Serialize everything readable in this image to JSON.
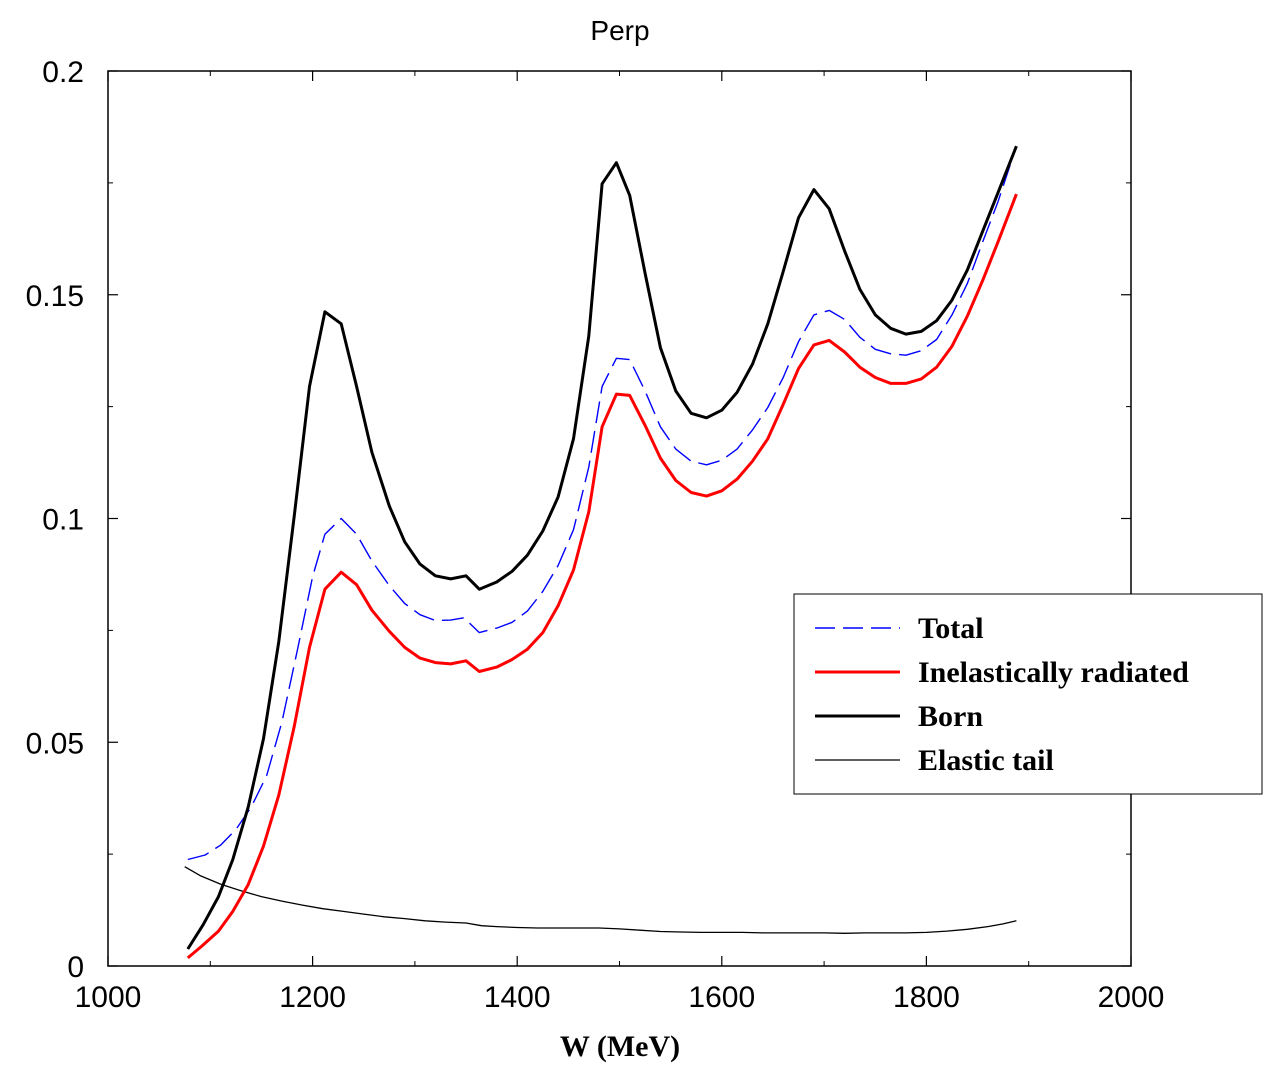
{
  "chart_data": {
    "type": "line",
    "title": "Perp",
    "xlabel": "W (MeV)",
    "ylabel": "",
    "xlim": [
      1000,
      2000
    ],
    "ylim": [
      0,
      0.2
    ],
    "x_ticks": [
      "1000",
      "1200",
      "1400",
      "1600",
      "1800",
      "2000"
    ],
    "y_ticks": [
      "0",
      "0.05",
      "0.1",
      "0.15",
      "0.2"
    ],
    "x_tick_values": [
      1000,
      1200,
      1400,
      1600,
      1800,
      2000
    ],
    "y_tick_values": [
      0,
      0.05,
      0.1,
      0.15,
      0.2
    ],
    "grid": false,
    "legend_position": "right",
    "series": [
      {
        "name": "Total",
        "color": "#0000ff",
        "style": "dashed",
        "points": [
          [
            1078,
            0.0238
          ],
          [
            1095,
            0.0248
          ],
          [
            1110,
            0.027
          ],
          [
            1125,
            0.0305
          ],
          [
            1140,
            0.0355
          ],
          [
            1155,
            0.0425
          ],
          [
            1170,
            0.0545
          ],
          [
            1185,
            0.0705
          ],
          [
            1200,
            0.087
          ],
          [
            1212,
            0.0965
          ],
          [
            1228,
            0.1
          ],
          [
            1243,
            0.0965
          ],
          [
            1258,
            0.0905
          ],
          [
            1275,
            0.085
          ],
          [
            1290,
            0.081
          ],
          [
            1305,
            0.0785
          ],
          [
            1320,
            0.0772
          ],
          [
            1335,
            0.0773
          ],
          [
            1348,
            0.0778
          ],
          [
            1363,
            0.0745
          ],
          [
            1380,
            0.0755
          ],
          [
            1395,
            0.0768
          ],
          [
            1410,
            0.0793
          ],
          [
            1425,
            0.0837
          ],
          [
            1440,
            0.0895
          ],
          [
            1455,
            0.0975
          ],
          [
            1470,
            0.1115
          ],
          [
            1483,
            0.1295
          ],
          [
            1497,
            0.1358
          ],
          [
            1510,
            0.1355
          ],
          [
            1525,
            0.1285
          ],
          [
            1540,
            0.1205
          ],
          [
            1555,
            0.1155
          ],
          [
            1570,
            0.1128
          ],
          [
            1585,
            0.112
          ],
          [
            1600,
            0.113
          ],
          [
            1615,
            0.1155
          ],
          [
            1630,
            0.1198
          ],
          [
            1645,
            0.1248
          ],
          [
            1660,
            0.1315
          ],
          [
            1675,
            0.1395
          ],
          [
            1690,
            0.1455
          ],
          [
            1705,
            0.1465
          ],
          [
            1720,
            0.1445
          ],
          [
            1735,
            0.1405
          ],
          [
            1750,
            0.1378
          ],
          [
            1765,
            0.1368
          ],
          [
            1780,
            0.1365
          ],
          [
            1795,
            0.1375
          ],
          [
            1810,
            0.14
          ],
          [
            1825,
            0.1455
          ],
          [
            1840,
            0.1525
          ],
          [
            1855,
            0.1618
          ],
          [
            1870,
            0.1708
          ],
          [
            1888,
            0.1832
          ]
        ]
      },
      {
        "name": "Inelastically radiated",
        "color": "#ff0000",
        "style": "solid",
        "points": [
          [
            1078,
            0.0018
          ],
          [
            1092,
            0.0045
          ],
          [
            1108,
            0.0078
          ],
          [
            1122,
            0.0122
          ],
          [
            1137,
            0.0182
          ],
          [
            1152,
            0.0268
          ],
          [
            1167,
            0.0382
          ],
          [
            1182,
            0.0535
          ],
          [
            1197,
            0.0712
          ],
          [
            1212,
            0.0842
          ],
          [
            1228,
            0.088
          ],
          [
            1243,
            0.0852
          ],
          [
            1258,
            0.0795
          ],
          [
            1275,
            0.0748
          ],
          [
            1290,
            0.0712
          ],
          [
            1305,
            0.0688
          ],
          [
            1320,
            0.0678
          ],
          [
            1335,
            0.0675
          ],
          [
            1350,
            0.0682
          ],
          [
            1363,
            0.0658
          ],
          [
            1380,
            0.0668
          ],
          [
            1395,
            0.0685
          ],
          [
            1410,
            0.0708
          ],
          [
            1425,
            0.0745
          ],
          [
            1440,
            0.0805
          ],
          [
            1455,
            0.0885
          ],
          [
            1470,
            0.1015
          ],
          [
            1483,
            0.1205
          ],
          [
            1497,
            0.1278
          ],
          [
            1510,
            0.1275
          ],
          [
            1525,
            0.1208
          ],
          [
            1540,
            0.1135
          ],
          [
            1555,
            0.1085
          ],
          [
            1570,
            0.1058
          ],
          [
            1585,
            0.105
          ],
          [
            1600,
            0.1062
          ],
          [
            1615,
            0.1088
          ],
          [
            1630,
            0.1128
          ],
          [
            1645,
            0.1178
          ],
          [
            1660,
            0.1255
          ],
          [
            1675,
            0.1335
          ],
          [
            1690,
            0.1388
          ],
          [
            1705,
            0.1398
          ],
          [
            1720,
            0.1372
          ],
          [
            1735,
            0.1338
          ],
          [
            1750,
            0.1315
          ],
          [
            1765,
            0.1302
          ],
          [
            1780,
            0.1302
          ],
          [
            1795,
            0.1312
          ],
          [
            1810,
            0.1338
          ],
          [
            1825,
            0.1385
          ],
          [
            1840,
            0.1452
          ],
          [
            1855,
            0.1532
          ],
          [
            1870,
            0.1618
          ],
          [
            1888,
            0.1725
          ]
        ]
      },
      {
        "name": "Born",
        "color": "#000000",
        "style": "solid",
        "points": [
          [
            1078,
            0.0038
          ],
          [
            1093,
            0.0092
          ],
          [
            1108,
            0.0155
          ],
          [
            1122,
            0.0238
          ],
          [
            1137,
            0.0355
          ],
          [
            1152,
            0.0508
          ],
          [
            1167,
            0.0725
          ],
          [
            1182,
            0.1005
          ],
          [
            1197,
            0.1295
          ],
          [
            1212,
            0.1462
          ],
          [
            1228,
            0.1435
          ],
          [
            1243,
            0.1295
          ],
          [
            1258,
            0.1148
          ],
          [
            1275,
            0.1028
          ],
          [
            1290,
            0.0948
          ],
          [
            1305,
            0.0898
          ],
          [
            1320,
            0.0872
          ],
          [
            1335,
            0.0865
          ],
          [
            1350,
            0.0872
          ],
          [
            1363,
            0.0842
          ],
          [
            1380,
            0.0858
          ],
          [
            1395,
            0.0882
          ],
          [
            1410,
            0.0918
          ],
          [
            1425,
            0.0972
          ],
          [
            1440,
            0.1048
          ],
          [
            1455,
            0.1178
          ],
          [
            1470,
            0.1408
          ],
          [
            1483,
            0.1748
          ],
          [
            1497,
            0.1795
          ],
          [
            1510,
            0.1722
          ],
          [
            1525,
            0.1548
          ],
          [
            1540,
            0.1382
          ],
          [
            1555,
            0.1285
          ],
          [
            1570,
            0.1235
          ],
          [
            1585,
            0.1225
          ],
          [
            1600,
            0.1242
          ],
          [
            1615,
            0.1282
          ],
          [
            1630,
            0.1345
          ],
          [
            1645,
            0.1435
          ],
          [
            1660,
            0.1552
          ],
          [
            1675,
            0.1672
          ],
          [
            1690,
            0.1735
          ],
          [
            1705,
            0.1692
          ],
          [
            1720,
            0.1598
          ],
          [
            1735,
            0.1512
          ],
          [
            1750,
            0.1455
          ],
          [
            1765,
            0.1425
          ],
          [
            1780,
            0.1412
          ],
          [
            1795,
            0.1418
          ],
          [
            1810,
            0.1442
          ],
          [
            1825,
            0.1488
          ],
          [
            1840,
            0.1555
          ],
          [
            1855,
            0.1642
          ],
          [
            1870,
            0.1728
          ],
          [
            1888,
            0.1832
          ]
        ]
      },
      {
        "name": "Elastic tail",
        "color": "#000000",
        "style": "thin",
        "points": [
          [
            1075,
            0.0222
          ],
          [
            1090,
            0.0202
          ],
          [
            1110,
            0.0183
          ],
          [
            1130,
            0.0168
          ],
          [
            1150,
            0.0155
          ],
          [
            1170,
            0.0145
          ],
          [
            1190,
            0.0136
          ],
          [
            1210,
            0.0128
          ],
          [
            1230,
            0.0122
          ],
          [
            1250,
            0.0116
          ],
          [
            1270,
            0.011
          ],
          [
            1290,
            0.0106
          ],
          [
            1310,
            0.0101
          ],
          [
            1330,
            0.0098
          ],
          [
            1350,
            0.0096
          ],
          [
            1365,
            0.009
          ],
          [
            1380,
            0.0088
          ],
          [
            1400,
            0.0086
          ],
          [
            1420,
            0.0085
          ],
          [
            1440,
            0.0085
          ],
          [
            1460,
            0.0085
          ],
          [
            1480,
            0.0085
          ],
          [
            1500,
            0.0083
          ],
          [
            1520,
            0.008
          ],
          [
            1540,
            0.0077
          ],
          [
            1560,
            0.0076
          ],
          [
            1580,
            0.0075
          ],
          [
            1600,
            0.0075
          ],
          [
            1620,
            0.0075
          ],
          [
            1640,
            0.0074
          ],
          [
            1660,
            0.0074
          ],
          [
            1680,
            0.0074
          ],
          [
            1700,
            0.0074
          ],
          [
            1720,
            0.0073
          ],
          [
            1740,
            0.0074
          ],
          [
            1760,
            0.0074
          ],
          [
            1780,
            0.0074
          ],
          [
            1800,
            0.0075
          ],
          [
            1820,
            0.0078
          ],
          [
            1840,
            0.0082
          ],
          [
            1860,
            0.0088
          ],
          [
            1875,
            0.0094
          ],
          [
            1888,
            0.0101
          ]
        ]
      }
    ]
  }
}
